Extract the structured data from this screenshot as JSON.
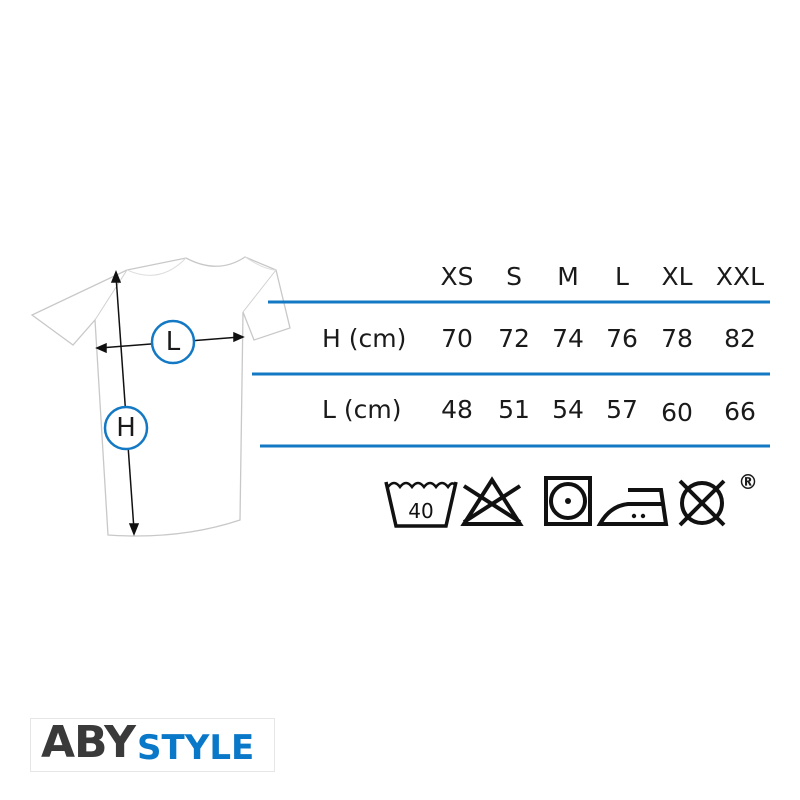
{
  "colors": {
    "accent": "#1479c4",
    "text": "#1a1a1a",
    "logo_dark": "#3a3a3a",
    "logo_blue": "#0a78c8"
  },
  "diagram": {
    "length_label": "L",
    "height_label": "H"
  },
  "size_table": {
    "headers": [
      "XS",
      "S",
      "M",
      "L",
      "XL",
      "XXL"
    ],
    "rows": [
      {
        "label": "H (cm)",
        "values": [
          "70",
          "72",
          "74",
          "76",
          "78",
          "82"
        ]
      },
      {
        "label": "L (cm)",
        "values": [
          "48",
          "51",
          "54",
          "57",
          "60",
          "66"
        ]
      }
    ]
  },
  "care_symbols": {
    "wash_temperature": "40",
    "icons": [
      "wash-40-icon",
      "do-not-bleach-icon",
      "tumble-dry-icon",
      "iron-medium-icon",
      "do-not-dry-clean-icon"
    ],
    "registered_mark": "®"
  },
  "logo": {
    "part1": "ABY",
    "part2": "STYLE"
  }
}
